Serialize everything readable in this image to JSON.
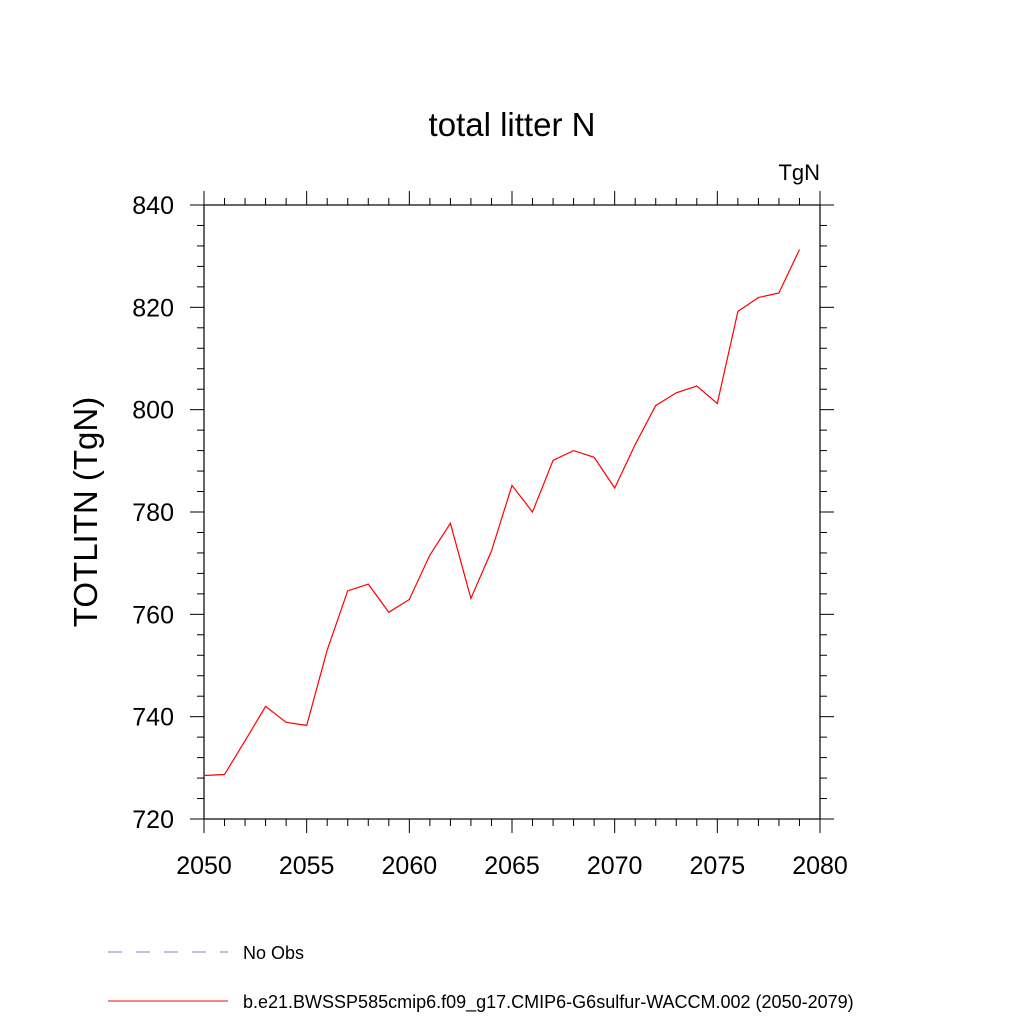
{
  "chart_data": {
    "type": "line",
    "title": "total litter N",
    "units_label": "TgN",
    "ylabel": "TOTLITN  (TgN)",
    "xlabel": "",
    "xlim": [
      2050,
      2080
    ],
    "ylim": [
      720,
      840
    ],
    "x_ticks": [
      2050,
      2055,
      2060,
      2065,
      2070,
      2075,
      2080
    ],
    "y_ticks": [
      720,
      740,
      760,
      780,
      800,
      820,
      840
    ],
    "grid": false,
    "legend_position": "bottom",
    "series": [
      {
        "name": "b.e21.BWSSP585cmip6.f09_g17.CMIP6-G6sulfur-WACCM.002 (2050-2079)",
        "color": "#ff0000",
        "style": "solid",
        "x": [
          2050,
          2051,
          2052,
          2053,
          2054,
          2055,
          2056,
          2057,
          2058,
          2059,
          2060,
          2061,
          2062,
          2063,
          2064,
          2065,
          2066,
          2067,
          2068,
          2069,
          2070,
          2071,
          2072,
          2073,
          2074,
          2075,
          2076,
          2077,
          2078,
          2079
        ],
        "y": [
          728.5,
          728.7,
          735.3,
          742.0,
          738.9,
          738.3,
          753.0,
          764.6,
          765.9,
          760.4,
          762.9,
          771.6,
          777.8,
          763.1,
          772.4,
          785.2,
          780.0,
          790.1,
          792.0,
          790.7,
          784.7,
          793.2,
          800.8,
          803.3,
          804.6,
          801.2,
          819.2,
          821.9,
          822.8,
          831.3
        ]
      }
    ],
    "legend": [
      {
        "label": "No Obs",
        "color": "#8080c0",
        "style": "dashed"
      },
      {
        "label": "b.e21.BWSSP585cmip6.f09_g17.CMIP6-G6sulfur-WACCM.002 (2050-2079)",
        "color": "#ff0000",
        "style": "solid"
      }
    ]
  }
}
